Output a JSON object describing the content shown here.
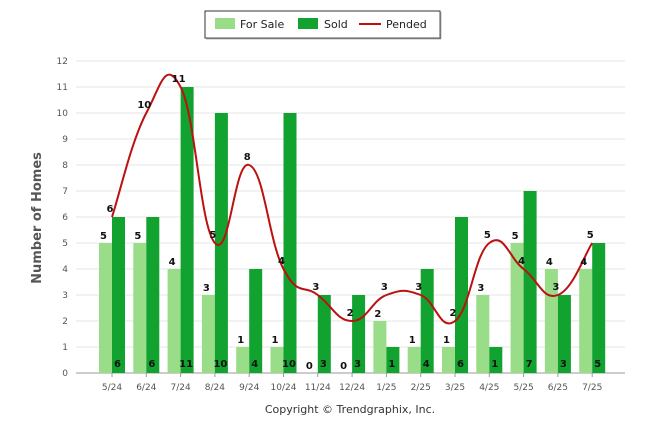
{
  "chart_data": {
    "type": "bar",
    "categories": [
      "5/24",
      "6/24",
      "7/24",
      "8/24",
      "9/24",
      "10/24",
      "11/24",
      "12/24",
      "1/25",
      "2/25",
      "3/25",
      "4/25",
      "5/25",
      "6/25",
      "7/25"
    ],
    "series": [
      {
        "name": "For Sale",
        "type": "bar",
        "color": "#99dd88",
        "values": [
          5,
          5,
          4,
          3,
          1,
          1,
          0,
          0,
          2,
          1,
          1,
          3,
          5,
          4,
          4
        ]
      },
      {
        "name": "Sold",
        "type": "bar",
        "color": "#11a22f",
        "values": [
          6,
          6,
          11,
          10,
          4,
          10,
          3,
          3,
          1,
          4,
          6,
          1,
          7,
          3,
          5
        ]
      },
      {
        "name": "Pended",
        "type": "line",
        "color": "#bb1111",
        "values": [
          6,
          10,
          11,
          5,
          8,
          4,
          3,
          2,
          3,
          3,
          2,
          5,
          4,
          3,
          5
        ]
      }
    ],
    "ylabel": "Number of Homes",
    "ylim": [
      0,
      12
    ],
    "yticks": [
      0,
      1,
      2,
      3,
      4,
      5,
      6,
      7,
      8,
      9,
      10,
      11,
      12
    ],
    "grid": true,
    "legend": "top-center"
  },
  "footer": "Copyright © Trendgraphix, Inc."
}
